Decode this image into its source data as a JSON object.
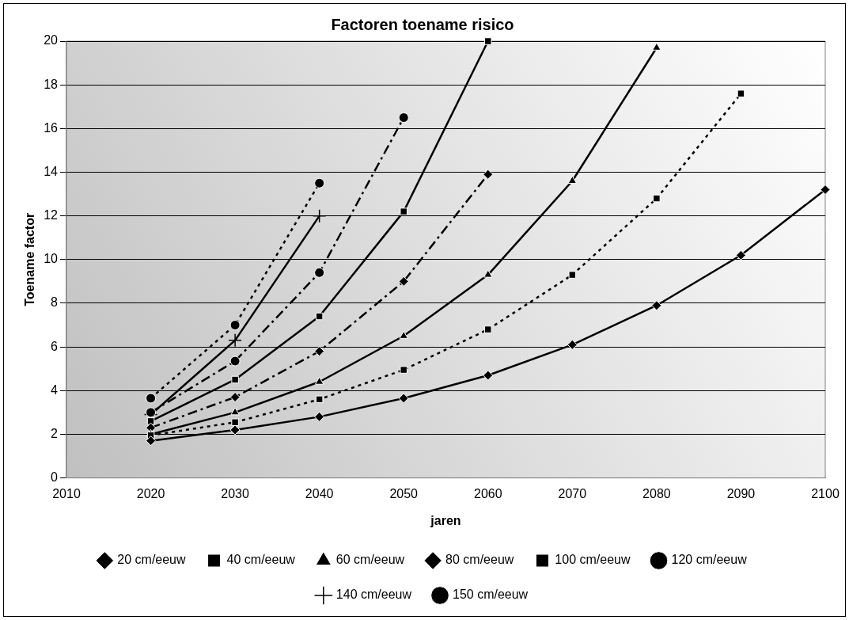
{
  "chart_data": {
    "type": "line",
    "title": "Factoren toename risico",
    "xlabel": "jaren",
    "ylabel": "Toename factor",
    "x": [
      2020,
      2030,
      2040,
      2050,
      2060,
      2070,
      2080,
      2090,
      2100
    ],
    "xlim": [
      2010,
      2100
    ],
    "xticks": [
      2010,
      2020,
      2030,
      2040,
      2050,
      2060,
      2070,
      2080,
      2090,
      2100
    ],
    "ylim": [
      0,
      20
    ],
    "yticks": [
      0,
      2,
      4,
      6,
      8,
      10,
      12,
      14,
      16,
      18,
      20
    ],
    "grid": "y",
    "legend": "bottom",
    "series": [
      {
        "name": "20 cm/eeuw",
        "color": "#000000",
        "marker": "diamond",
        "line_style": "solid",
        "values": [
          1.7,
          2.2,
          2.8,
          3.65,
          4.7,
          6.1,
          7.9,
          10.2,
          13.2
        ]
      },
      {
        "name": "40 cm/eeuw",
        "color": "#000000",
        "marker": "square",
        "line_style": "dotted",
        "values": [
          1.95,
          2.55,
          3.6,
          4.95,
          6.8,
          9.3,
          12.8,
          17.6,
          null
        ]
      },
      {
        "name": "60 cm/eeuw",
        "color": "#000000",
        "marker": "triangle",
        "line_style": "solid",
        "values": [
          2.0,
          3.0,
          4.4,
          6.5,
          9.3,
          13.6,
          19.7,
          null,
          null
        ]
      },
      {
        "name": "80 cm/eeuw",
        "color": "#000000",
        "marker": "diamond",
        "line_style": "dashed",
        "values": [
          2.3,
          3.7,
          5.8,
          9.0,
          13.9,
          null,
          null,
          null,
          null
        ]
      },
      {
        "name": "100 cm/eeuw",
        "color": "#000000",
        "marker": "square",
        "line_style": "solid",
        "values": [
          2.6,
          4.5,
          7.4,
          12.2,
          20.0,
          null,
          null,
          null,
          null
        ]
      },
      {
        "name": "120 cm/eeuw",
        "color": "#000000",
        "marker": "circle",
        "line_style": "dashed",
        "values": [
          3.0,
          5.35,
          9.4,
          16.5,
          null,
          null,
          null,
          null,
          null
        ]
      },
      {
        "name": "140 cm/eeuw",
        "color": "#000000",
        "marker": "cross",
        "line_style": "solid",
        "values": [
          2.9,
          6.3,
          12.0,
          null,
          null,
          null,
          null,
          null,
          null
        ]
      },
      {
        "name": "150 cm/eeuw",
        "color": "#000000",
        "marker": "circle",
        "line_style": "dotted",
        "values": [
          3.65,
          7.0,
          13.5,
          null,
          null,
          null,
          null,
          null,
          null
        ]
      }
    ]
  }
}
